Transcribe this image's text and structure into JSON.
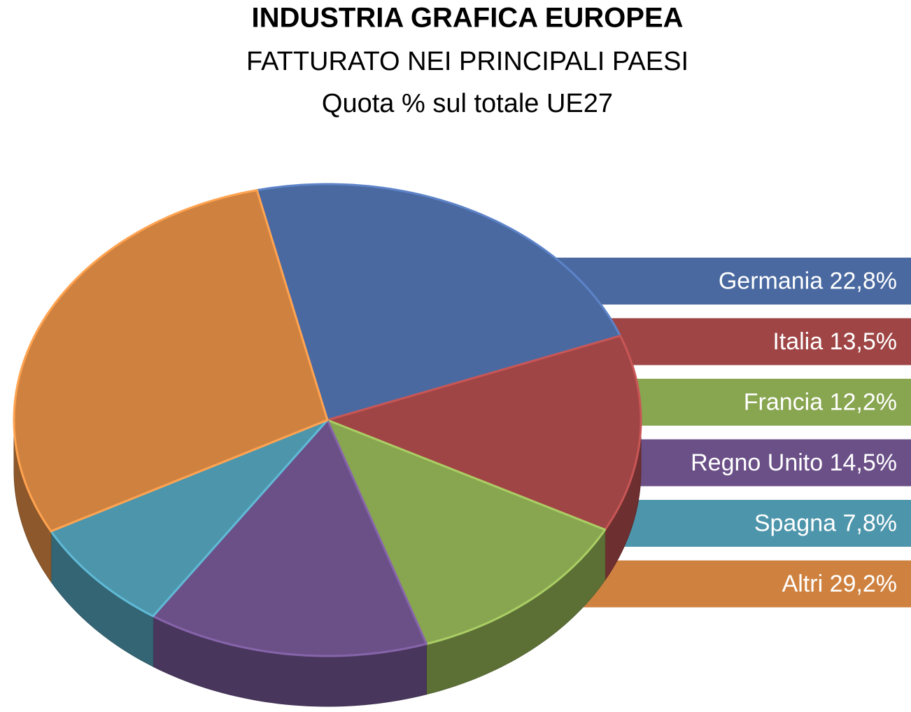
{
  "chart_data": {
    "type": "pie3d",
    "title": "INDUSTRIA GRAFICA EUROPEA",
    "subtitle": [
      "FATTURATO NEI PRINCIPALI PAESI",
      "Quota % sul totale UE27"
    ],
    "categories": [
      "Germania",
      "Italia",
      "Francia",
      "Regno Unito",
      "Spagna",
      "Altri"
    ],
    "values": [
      22.8,
      13.5,
      12.2,
      14.5,
      7.8,
      29.2
    ],
    "value_labels": [
      "22,8%",
      "13,5%",
      "12,2%",
      "14,5%",
      "7,8%",
      "29,2%"
    ],
    "colors": [
      "#4a69a0",
      "#a04545",
      "#88a550",
      "#6b5088",
      "#4d95ab",
      "#cf8240"
    ],
    "legend": "right"
  }
}
